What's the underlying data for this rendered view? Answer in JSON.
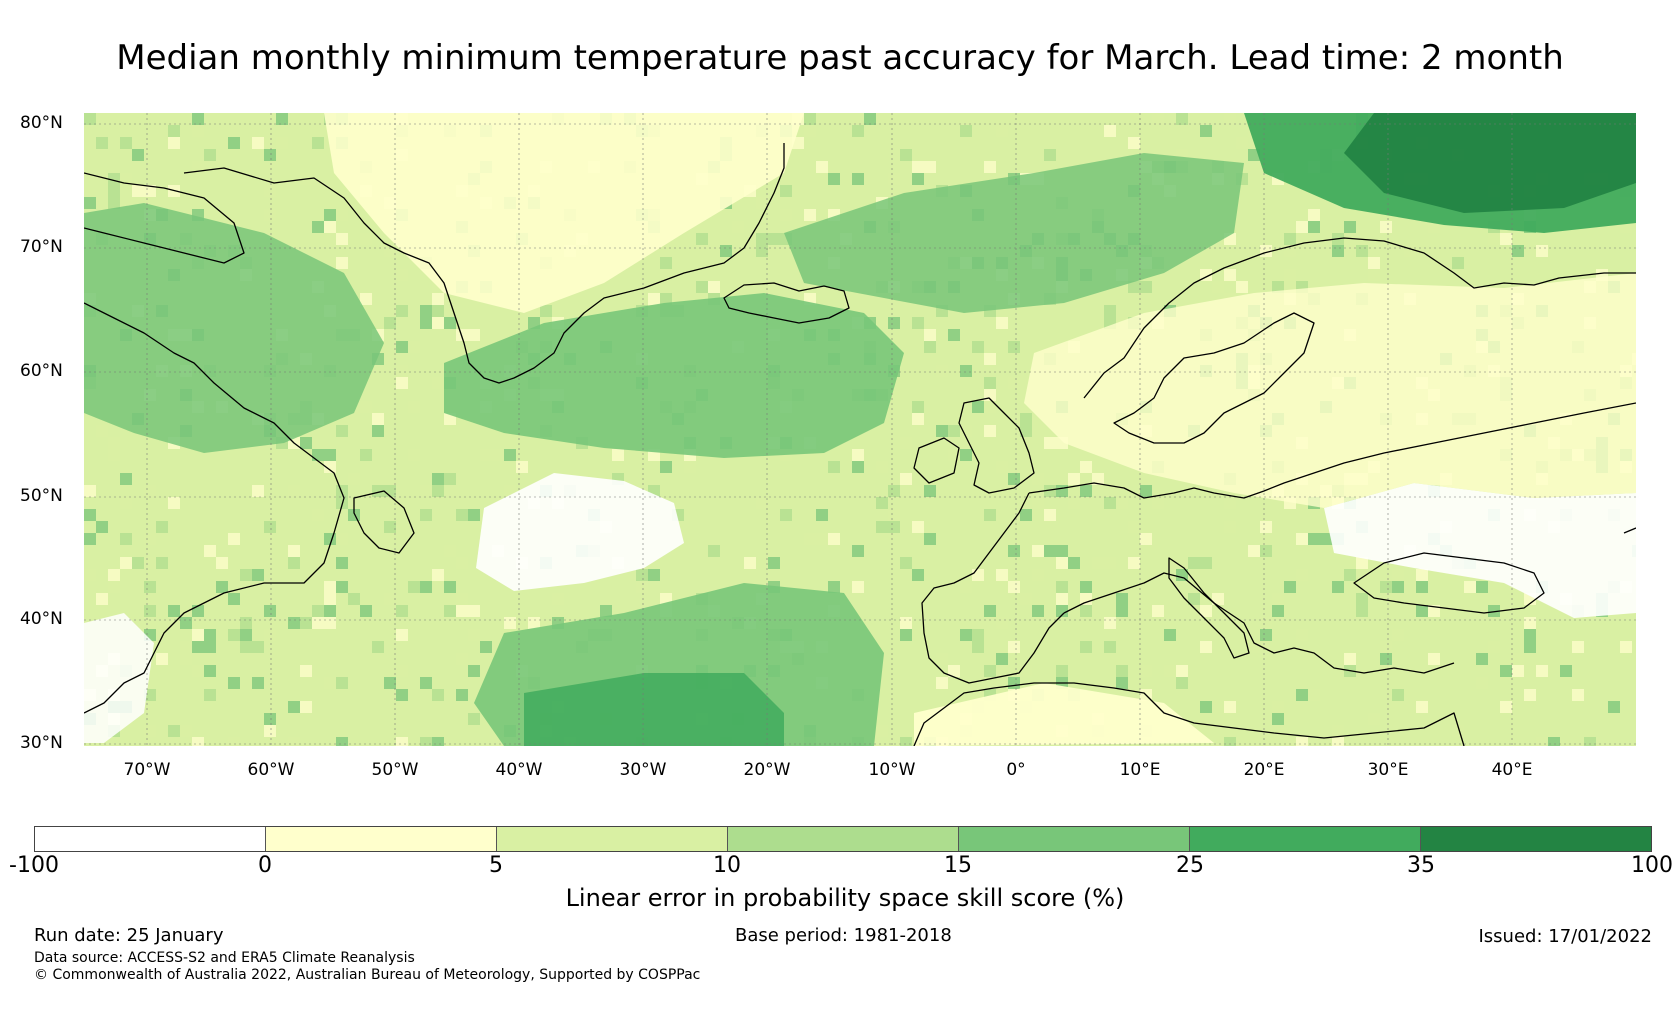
{
  "title": "Median monthly minimum temperature past accuracy for March. Lead time: 2 month",
  "map": {
    "region": "North Atlantic and Europe",
    "lon_range": [
      -75,
      50
    ],
    "lat_range": [
      30,
      81
    ],
    "lat_labels": [
      "80°N",
      "70°N",
      "60°N",
      "50°N",
      "40°N",
      "30°N"
    ],
    "lon_labels": [
      "70°W",
      "60°W",
      "50°W",
      "40°W",
      "30°W",
      "20°W",
      "10°W",
      "0°",
      "10°E",
      "20°E",
      "30°E",
      "40°E"
    ]
  },
  "colorbar": {
    "title": "Linear error in probability space skill score (%)",
    "ticks": [
      "-100",
      "0",
      "5",
      "10",
      "15",
      "25",
      "35",
      "100"
    ],
    "colors": [
      "#ffffff",
      "#ffffcc",
      "#d9f0a3",
      "#addd8e",
      "#78c679",
      "#41ab5d",
      "#238443"
    ]
  },
  "footer": {
    "run_date": "Run date: 25 January",
    "base_period": "Base period: 1981-2018",
    "issued": "Issued: 17/01/2022",
    "data_source": "Data source: ACCESS-S2 and ERA5 Climate Reanalysis",
    "copyright": "© Commonwealth of Australia 2022, Australian Bureau of Meteorology, Supported by COSPPac"
  }
}
